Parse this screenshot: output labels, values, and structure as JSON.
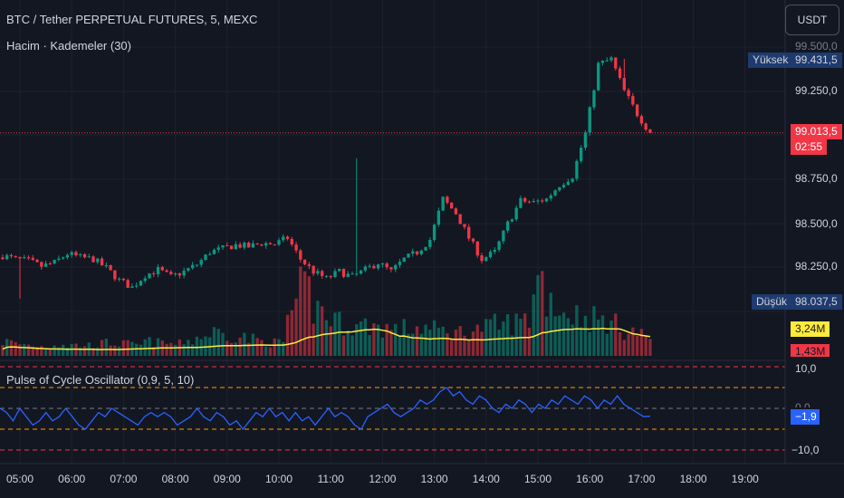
{
  "header": {
    "symbol_title": "BTC / Tether PERPETUAL FUTURES, 5, MEXC",
    "volume_indicator": "Hacim · Kademeler (30)",
    "currency_button": "USDT"
  },
  "oscillator": {
    "title": "Pulse of Cycle Oscillator (0,9, 5, 10)",
    "current_value": "−1,9",
    "upper_level": "10,0",
    "middle_level": "0,0",
    "lower_level": "−10,0"
  },
  "price_axis": {
    "labels": [
      "99.500,0",
      "99.250,0",
      "98.750,0",
      "98.500,0",
      "98.250,0"
    ],
    "high_label": "Yüksek",
    "high_value": "99.431,5",
    "low_label": "Düşük",
    "low_value": "98.037,5",
    "last_price": "99.013,5",
    "countdown": "02:55",
    "volume_ma_value": "3,24M",
    "volume_value": "1,43M"
  },
  "time_axis": {
    "labels": [
      "05:00",
      "06:00",
      "07:00",
      "08:00",
      "09:00",
      "10:00",
      "11:00",
      "12:00",
      "13:00",
      "14:00",
      "15:00",
      "16:00",
      "17:00",
      "18:00",
      "19:00"
    ]
  },
  "colors": {
    "background": "#131722",
    "up": "#089981",
    "down": "#f23645",
    "volume_ma": "#ffeb3b",
    "oscillator_line": "#2962ff",
    "level_red": "#f23645",
    "level_orange": "#ff9800",
    "axis_tag_blue": "#1e3a6e"
  },
  "chart_data": [
    {
      "type": "candlestick",
      "ylim": [
        97950,
        99520
      ],
      "x": [
        "04:40",
        "17:20"
      ],
      "path_close": [
        98320,
        98300,
        98290,
        98260,
        98280,
        98330,
        98310,
        98300,
        98250,
        98180,
        98140,
        98210,
        98240,
        98200,
        98230,
        98270,
        98340,
        98360,
        98380,
        98370,
        98390,
        98385,
        98420,
        98300,
        98230,
        98190,
        98230,
        98200,
        98240,
        98280,
        98230,
        98300,
        98340,
        98410,
        98640,
        98560,
        98420,
        98300,
        98340,
        98500,
        98630,
        98620,
        98640,
        98720,
        98770,
        99010,
        99400,
        99430,
        99250,
        99120,
        99013
      ],
      "path_time_step_minutes": 15,
      "high": 99431.5,
      "low": 98037.5,
      "last": 99013.5
    },
    {
      "type": "bar",
      "name": "Hacim",
      "ma": 3.24,
      "last": 1.43,
      "unit": "M",
      "volume_profile": [
        1.2,
        1.0,
        0.9,
        0.8,
        1.0,
        0.9,
        0.9,
        1.0,
        1.1,
        1.0,
        0.9,
        1.2,
        1.1,
        1.0,
        1.3,
        1.6,
        2.0,
        1.8,
        1.6,
        1.4,
        1.2,
        1.1,
        3.5,
        5.5,
        4.0,
        3.2,
        2.8,
        2.5,
        2.6,
        2.4,
        2.2,
        2.3,
        2.4,
        2.2,
        2.1,
        2.0,
        2.2,
        2.4,
        2.6,
        2.8,
        3.0,
        6.5,
        4.8,
        3.8,
        3.5,
        3.2,
        3.0,
        2.6,
        2.2,
        1.8,
        1.43
      ]
    },
    {
      "type": "line",
      "name": "Pulse of Cycle Oscillator",
      "ylim": [
        -12,
        12
      ],
      "levels": [
        10,
        5,
        0,
        -5,
        -10
      ],
      "values": [
        0,
        -1,
        -3,
        0,
        -2,
        -4,
        -3,
        -1,
        -3,
        -2,
        0,
        -2,
        -4,
        -5,
        -3,
        -1,
        -2,
        0,
        -1,
        -2,
        -3,
        -4,
        -2,
        -1,
        -2,
        -1,
        -2,
        -4,
        -3,
        -2,
        0,
        -2,
        -3,
        -1,
        -2,
        -4,
        -3,
        -5,
        -3,
        -1,
        -2,
        0,
        -2,
        -1,
        -3,
        -1,
        -3,
        -2,
        -4,
        -2,
        0,
        -2,
        -1,
        -2,
        -4,
        -5,
        -2,
        -1,
        0,
        1,
        -1,
        -2,
        -1,
        0,
        2,
        1,
        2,
        4,
        5,
        3,
        4,
        2,
        1,
        3,
        2,
        0,
        -1,
        1,
        0,
        2,
        1,
        -1,
        1,
        0,
        2,
        1,
        3,
        2,
        1,
        3,
        2,
        0,
        2,
        1,
        3,
        1,
        0,
        -1,
        -2,
        -1.9
      ]
    }
  ]
}
